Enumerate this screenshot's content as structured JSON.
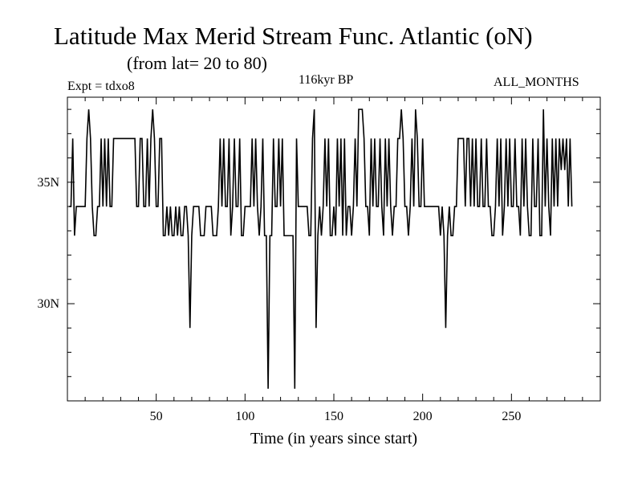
{
  "chart_data": {
    "type": "line",
    "title": "Latitude Max Merid Stream Func. Atlantic (oN)",
    "subtitle": "(from lat= 20 to 80)",
    "annotations": {
      "experiment": "Expt = tdxo8",
      "period": "116kyr BP",
      "months": "ALL_MONTHS"
    },
    "xlabel": "Time (in years since start)",
    "ylabel": "",
    "xlim": [
      0,
      300
    ],
    "ylim": [
      26,
      38.5
    ],
    "x_ticks": [
      50,
      100,
      150,
      200,
      250
    ],
    "x_tick_labels": [
      "50",
      "100",
      "150",
      "200",
      "250"
    ],
    "y_ticks": [
      30,
      35
    ],
    "y_tick_labels": [
      "30N",
      "35N"
    ],
    "grid": false,
    "legend": "none",
    "series": [
      {
        "color": "#000000",
        "x_start": 1,
        "x_step": 1,
        "values": [
          34,
          34,
          36.8,
          32.8,
          34,
          34,
          34,
          34,
          34,
          34,
          36.8,
          38,
          36.8,
          34,
          32.8,
          32.8,
          34,
          34,
          36.8,
          34,
          36.8,
          34,
          36.8,
          34,
          34,
          36.8,
          36.8,
          36.8,
          36.8,
          36.8,
          36.8,
          36.8,
          36.8,
          36.8,
          36.8,
          36.8,
          36.8,
          36.8,
          34,
          34,
          36.8,
          36.8,
          34,
          34,
          36.8,
          34,
          36.8,
          38,
          36.8,
          34,
          34,
          36.8,
          36.8,
          32.8,
          32.8,
          34,
          32.8,
          34,
          32.8,
          32.8,
          34,
          32.8,
          34,
          32.8,
          32.8,
          34,
          34,
          32.8,
          29,
          32.8,
          34,
          34,
          34,
          34,
          32.8,
          32.8,
          32.8,
          34,
          34,
          34,
          34,
          32.8,
          32.8,
          32.8,
          34,
          36.8,
          34,
          36.8,
          34,
          34,
          36.8,
          32.8,
          34,
          36.8,
          34,
          34,
          36.8,
          32.8,
          32.8,
          34,
          34,
          34,
          34,
          36.8,
          34,
          36.8,
          34,
          32.8,
          34,
          36.8,
          32.8,
          32.8,
          26.5,
          32.8,
          32.8,
          36.8,
          34,
          34,
          36.8,
          34,
          36.8,
          32.8,
          32.8,
          32.8,
          32.8,
          32.8,
          32.8,
          26.5,
          36.8,
          34,
          34,
          34,
          34,
          34,
          34,
          32.8,
          32.8,
          36.8,
          38,
          29,
          32.8,
          34,
          32.8,
          34,
          36.8,
          34,
          36.8,
          32.8,
          32.8,
          34,
          32.8,
          36.8,
          34,
          36.8,
          32.8,
          36.8,
          32.8,
          34,
          34,
          32.8,
          34,
          36.8,
          34,
          38,
          38,
          38,
          36.8,
          34,
          34,
          32.8,
          36.8,
          34,
          36.8,
          34,
          34,
          36.8,
          34,
          32.8,
          36.8,
          34,
          36.8,
          34,
          32.8,
          34,
          34,
          36.8,
          36.8,
          38,
          36.8,
          34,
          34,
          32.8,
          34,
          36.8,
          34,
          38,
          36.8,
          34,
          34,
          36.8,
          34,
          34,
          34,
          34,
          34,
          34,
          34,
          34,
          34,
          32.8,
          34,
          32.8,
          29,
          32.8,
          34,
          32.8,
          32.8,
          34,
          34,
          36.8,
          36.8,
          36.8,
          36.8,
          34,
          36.8,
          36.8,
          34,
          36.8,
          34,
          36.8,
          34,
          34,
          36.8,
          34,
          34,
          36.8,
          34,
          34,
          32.8,
          32.8,
          34,
          36.8,
          34,
          36.8,
          32.8,
          34,
          36.8,
          34,
          36.8,
          34,
          34,
          36.8,
          34,
          34,
          32.8,
          36.8,
          34,
          36.8,
          34,
          32.8,
          32.8,
          36.8,
          34,
          34,
          36.8,
          32.8,
          32.8,
          38,
          34,
          36.8,
          34,
          32.8,
          36.8,
          34,
          36.8,
          34,
          36.8,
          35.5,
          36.8,
          35.5,
          36.8,
          34,
          36.8,
          34
        ]
      }
    ]
  }
}
